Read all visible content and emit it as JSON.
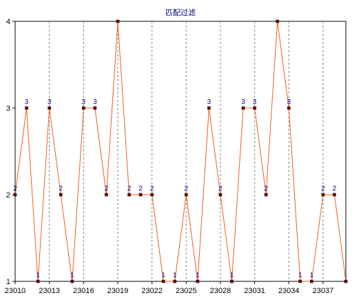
{
  "chart_data": {
    "type": "line",
    "title": "匹配过滤",
    "xlabel": "",
    "ylabel": "",
    "x": [
      23010,
      23011,
      23012,
      23013,
      23014,
      23015,
      23016,
      23017,
      23018,
      23019,
      23020,
      23021,
      23022,
      23023,
      23024,
      23025,
      23026,
      23027,
      23028,
      23029,
      23030,
      23031,
      23032,
      23033,
      23034,
      23035,
      23036,
      23037,
      23038,
      23039
    ],
    "x_ticks": [
      "23010",
      "23013",
      "23016",
      "23019",
      "23022",
      "23025",
      "23028",
      "23031",
      "23034",
      "23037"
    ],
    "y_ticks": [
      "1",
      "2",
      "3",
      "4"
    ],
    "xlim": [
      23010,
      23039
    ],
    "ylim": [
      1,
      4
    ],
    "series": [
      {
        "values": [
          2,
          3,
          1,
          3,
          2,
          1,
          3,
          3,
          2,
          4,
          2,
          2,
          2,
          1,
          1,
          2,
          1,
          3,
          2,
          1,
          3,
          3,
          2,
          4,
          3,
          1,
          1,
          2,
          2,
          1
        ],
        "labels": [
          "2",
          "3",
          "1",
          "3",
          "2",
          "1",
          "3",
          "3",
          "2",
          "",
          "2",
          "2",
          "2",
          "1",
          "1",
          "2",
          "1",
          "3",
          "2",
          "1",
          "3",
          "3",
          "2",
          "",
          "3",
          "1",
          "1",
          "2",
          "2",
          ""
        ]
      }
    ],
    "grid": "vertical dashed",
    "colors": {
      "line": "#e8601c",
      "marker_fill": "#8b0000",
      "marker_edge": "#000000",
      "label": "#00008b",
      "grid": "#808080",
      "title": "#000080"
    }
  }
}
